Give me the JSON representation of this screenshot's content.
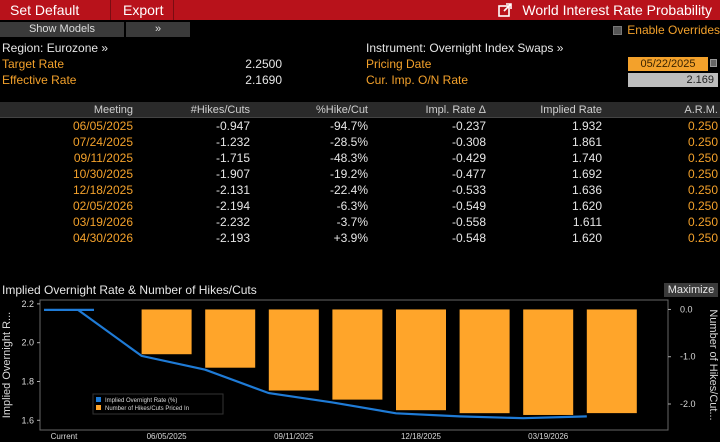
{
  "toolbar": {
    "set_default": "Set Default",
    "export": "Export",
    "window_title": "World Interest Rate Probability"
  },
  "controls": {
    "show_models": "Show Models",
    "expand": "»",
    "enable_overrides": "Enable Overrides"
  },
  "info": {
    "region": "Region: Eurozone »",
    "target_rate_label": "Target Rate",
    "target_rate_value": "2.2500",
    "effective_rate_label": "Effective Rate",
    "effective_rate_value": "2.1690",
    "instrument": "Instrument: Overnight Index Swaps »",
    "pricing_date_label": "Pricing Date",
    "pricing_date_value": "05/22/2025",
    "cur_imp_label": "Cur. Imp. O/N Rate",
    "cur_imp_value": "2.169"
  },
  "table": {
    "headers": [
      "Meeting",
      "#Hikes/Cuts",
      "%Hike/Cut",
      "Impl. Rate Δ",
      "Implied Rate",
      "A.R.M."
    ],
    "rows": [
      [
        "06/05/2025",
        "-0.947",
        "-94.7%",
        "-0.237",
        "1.932",
        "0.250"
      ],
      [
        "07/24/2025",
        "-1.232",
        "-28.5%",
        "-0.308",
        "1.861",
        "0.250"
      ],
      [
        "09/11/2025",
        "-1.715",
        "-48.3%",
        "-0.429",
        "1.740",
        "0.250"
      ],
      [
        "10/30/2025",
        "-1.907",
        "-19.2%",
        "-0.477",
        "1.692",
        "0.250"
      ],
      [
        "12/18/2025",
        "-2.131",
        "-22.4%",
        "-0.533",
        "1.636",
        "0.250"
      ],
      [
        "02/05/2026",
        "-2.194",
        "-6.3%",
        "-0.549",
        "1.620",
        "0.250"
      ],
      [
        "03/19/2026",
        "-2.232",
        "-3.7%",
        "-0.558",
        "1.611",
        "0.250"
      ],
      [
        "04/30/2026",
        "-2.193",
        "+3.9%",
        "-0.548",
        "1.620",
        "0.250"
      ]
    ]
  },
  "chart": {
    "title": "Implied Overnight Rate & Number of Hikes/Cuts",
    "maximize": "Maximize",
    "left_axis_label": "Implied Overnight R...",
    "right_axis_label": "Number of Hikes/Cut...",
    "legend_rate": "Implied Overnight Rate (%)",
    "legend_hikes": "Number of Hikes/Cuts Priced In",
    "left_ticks": [
      "2.2",
      "2.0",
      "1.8",
      "1.6"
    ],
    "right_ticks": [
      "0.0",
      "-1.0",
      "-2.0"
    ],
    "x_labels": [
      "Current",
      "06/05/2025",
      "09/11/2025",
      "12/18/2025",
      "03/19/2026"
    ]
  },
  "colors": {
    "accent_red": "#b8121b",
    "orange": "#f3a12b",
    "bar": "#ffa52a",
    "line": "#1f7bd6"
  },
  "chart_data": {
    "type": "bar",
    "categories": [
      "Current",
      "06/05/2025",
      "07/24/2025",
      "09/11/2025",
      "10/30/2025",
      "12/18/2025",
      "02/05/2026",
      "03/19/2026",
      "04/30/2026"
    ],
    "series": [
      {
        "name": "Implied Overnight Rate (%)",
        "type": "line",
        "axis": "left",
        "values": [
          2.169,
          1.932,
          1.861,
          1.74,
          1.692,
          1.636,
          1.62,
          1.611,
          1.62
        ]
      },
      {
        "name": "Number of Hikes/Cuts Priced In",
        "type": "bar",
        "axis": "right",
        "values": [
          null,
          -0.947,
          -1.232,
          -1.715,
          -1.907,
          -2.131,
          -2.194,
          -2.232,
          -2.193
        ]
      }
    ],
    "left_ylim": [
      1.55,
      2.22
    ],
    "right_ylim": [
      -2.55,
      0.2
    ]
  }
}
